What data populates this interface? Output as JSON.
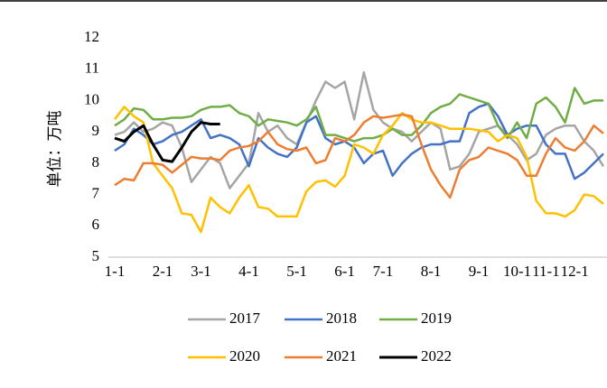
{
  "chart_data": {
    "type": "line",
    "y_label": "单位：万吨",
    "categories": [
      "1-1",
      null,
      null,
      null,
      null,
      "2-1",
      null,
      null,
      null,
      "3-1",
      null,
      null,
      null,
      null,
      "4-1",
      null,
      null,
      null,
      null,
      "5-1",
      null,
      null,
      null,
      null,
      "6-1",
      null,
      null,
      null,
      "7-1",
      null,
      null,
      null,
      null,
      "8-1",
      null,
      null,
      null,
      null,
      "9-1",
      null,
      null,
      null,
      "10-1",
      null,
      null,
      "11-1",
      null,
      null,
      "12-1",
      null,
      null,
      null
    ],
    "ylim": [
      5,
      12
    ],
    "yticks": [
      5,
      6,
      7,
      8,
      9,
      10,
      11,
      12
    ],
    "grid": false,
    "legend": "bottom",
    "series": [
      {
        "name": "2017",
        "color": "#a5a5a5",
        "values": [
          8.9,
          9.0,
          9.3,
          9.0,
          9.1,
          9.3,
          9.2,
          8.5,
          7.4,
          7.8,
          8.2,
          8.0,
          7.2,
          7.6,
          8.0,
          9.6,
          9.0,
          9.2,
          8.8,
          8.6,
          9.3,
          10.0,
          10.6,
          10.4,
          10.6,
          9.4,
          10.9,
          9.7,
          9.3,
          9.1,
          9.0,
          8.7,
          9.0,
          9.3,
          9.1,
          7.8,
          7.9,
          8.3,
          9.0,
          9.1,
          9.2,
          8.9,
          8.6,
          8.1,
          8.3,
          8.9,
          9.1,
          9.2,
          9.2,
          8.7,
          8.4,
          7.9
        ]
      },
      {
        "name": "2018",
        "color": "#4472c4",
        "values": [
          8.4,
          8.6,
          9.1,
          8.9,
          8.6,
          8.7,
          8.9,
          9.0,
          9.2,
          9.4,
          8.8,
          8.9,
          8.8,
          8.6,
          7.9,
          8.8,
          8.5,
          8.3,
          8.2,
          8.5,
          9.3,
          9.5,
          8.8,
          8.6,
          8.7,
          8.5,
          8.0,
          8.3,
          8.4,
          7.6,
          8.0,
          8.3,
          8.5,
          8.6,
          8.6,
          8.7,
          8.7,
          9.6,
          9.8,
          9.9,
          9.5,
          8.9,
          9.1,
          9.2,
          9.2,
          8.6,
          8.3,
          8.3,
          7.5,
          7.7,
          8.0,
          8.3
        ]
      },
      {
        "name": "2019",
        "color": "#70ad47",
        "values": [
          9.2,
          9.4,
          9.75,
          9.7,
          9.4,
          9.4,
          9.45,
          9.45,
          9.5,
          9.7,
          9.8,
          9.8,
          9.85,
          9.6,
          9.5,
          9.2,
          9.4,
          9.35,
          9.3,
          9.2,
          9.4,
          9.8,
          8.9,
          8.9,
          8.8,
          8.7,
          8.8,
          8.8,
          8.9,
          9.1,
          8.9,
          8.9,
          9.2,
          9.6,
          9.8,
          9.9,
          10.2,
          10.1,
          10.0,
          9.9,
          9.2,
          8.8,
          9.3,
          8.8,
          9.9,
          10.1,
          9.8,
          9.3,
          10.4,
          9.9,
          10.0,
          10.0
        ]
      },
      {
        "name": "2020",
        "color": "#ffc000",
        "values": [
          9.4,
          9.8,
          9.5,
          9.3,
          8.0,
          7.6,
          7.2,
          6.4,
          6.35,
          5.8,
          6.9,
          6.6,
          6.4,
          6.9,
          7.3,
          6.6,
          6.55,
          6.3,
          6.3,
          6.3,
          7.1,
          7.4,
          7.45,
          7.25,
          7.6,
          8.6,
          8.5,
          8.3,
          8.9,
          9.2,
          9.6,
          9.4,
          9.3,
          9.3,
          9.2,
          9.1,
          9.1,
          9.1,
          9.05,
          9.0,
          8.7,
          8.9,
          8.8,
          8.2,
          6.8,
          6.4,
          6.4,
          6.3,
          6.5,
          7.0,
          6.95,
          6.7
        ]
      },
      {
        "name": "2021",
        "color": "#ed7d31",
        "values": [
          7.3,
          7.5,
          7.45,
          8.0,
          8.0,
          7.95,
          7.7,
          7.95,
          8.2,
          8.15,
          8.15,
          8.1,
          8.4,
          8.5,
          8.55,
          8.7,
          9.0,
          8.6,
          8.45,
          8.4,
          8.5,
          8.0,
          8.1,
          8.8,
          8.7,
          8.9,
          9.3,
          9.5,
          9.45,
          9.5,
          9.55,
          9.5,
          8.6,
          7.8,
          7.3,
          6.9,
          7.8,
          8.1,
          8.2,
          8.5,
          8.4,
          8.3,
          8.1,
          7.6,
          7.6,
          8.3,
          8.8,
          8.5,
          8.4,
          8.7,
          9.2,
          8.95
        ]
      },
      {
        "name": "2022",
        "color": "#000000",
        "values": [
          8.8,
          8.7,
          9.0,
          9.2,
          8.6,
          8.1,
          8.05,
          8.5,
          9.0,
          9.3,
          9.25,
          9.25,
          null,
          null,
          null,
          null,
          null,
          null,
          null,
          null,
          null,
          null,
          null,
          null,
          null,
          null,
          null,
          null,
          null,
          null,
          null,
          null,
          null,
          null,
          null,
          null,
          null,
          null,
          null,
          null,
          null,
          null,
          null,
          null,
          null,
          null,
          null,
          null,
          null,
          null,
          null,
          null
        ]
      }
    ]
  }
}
